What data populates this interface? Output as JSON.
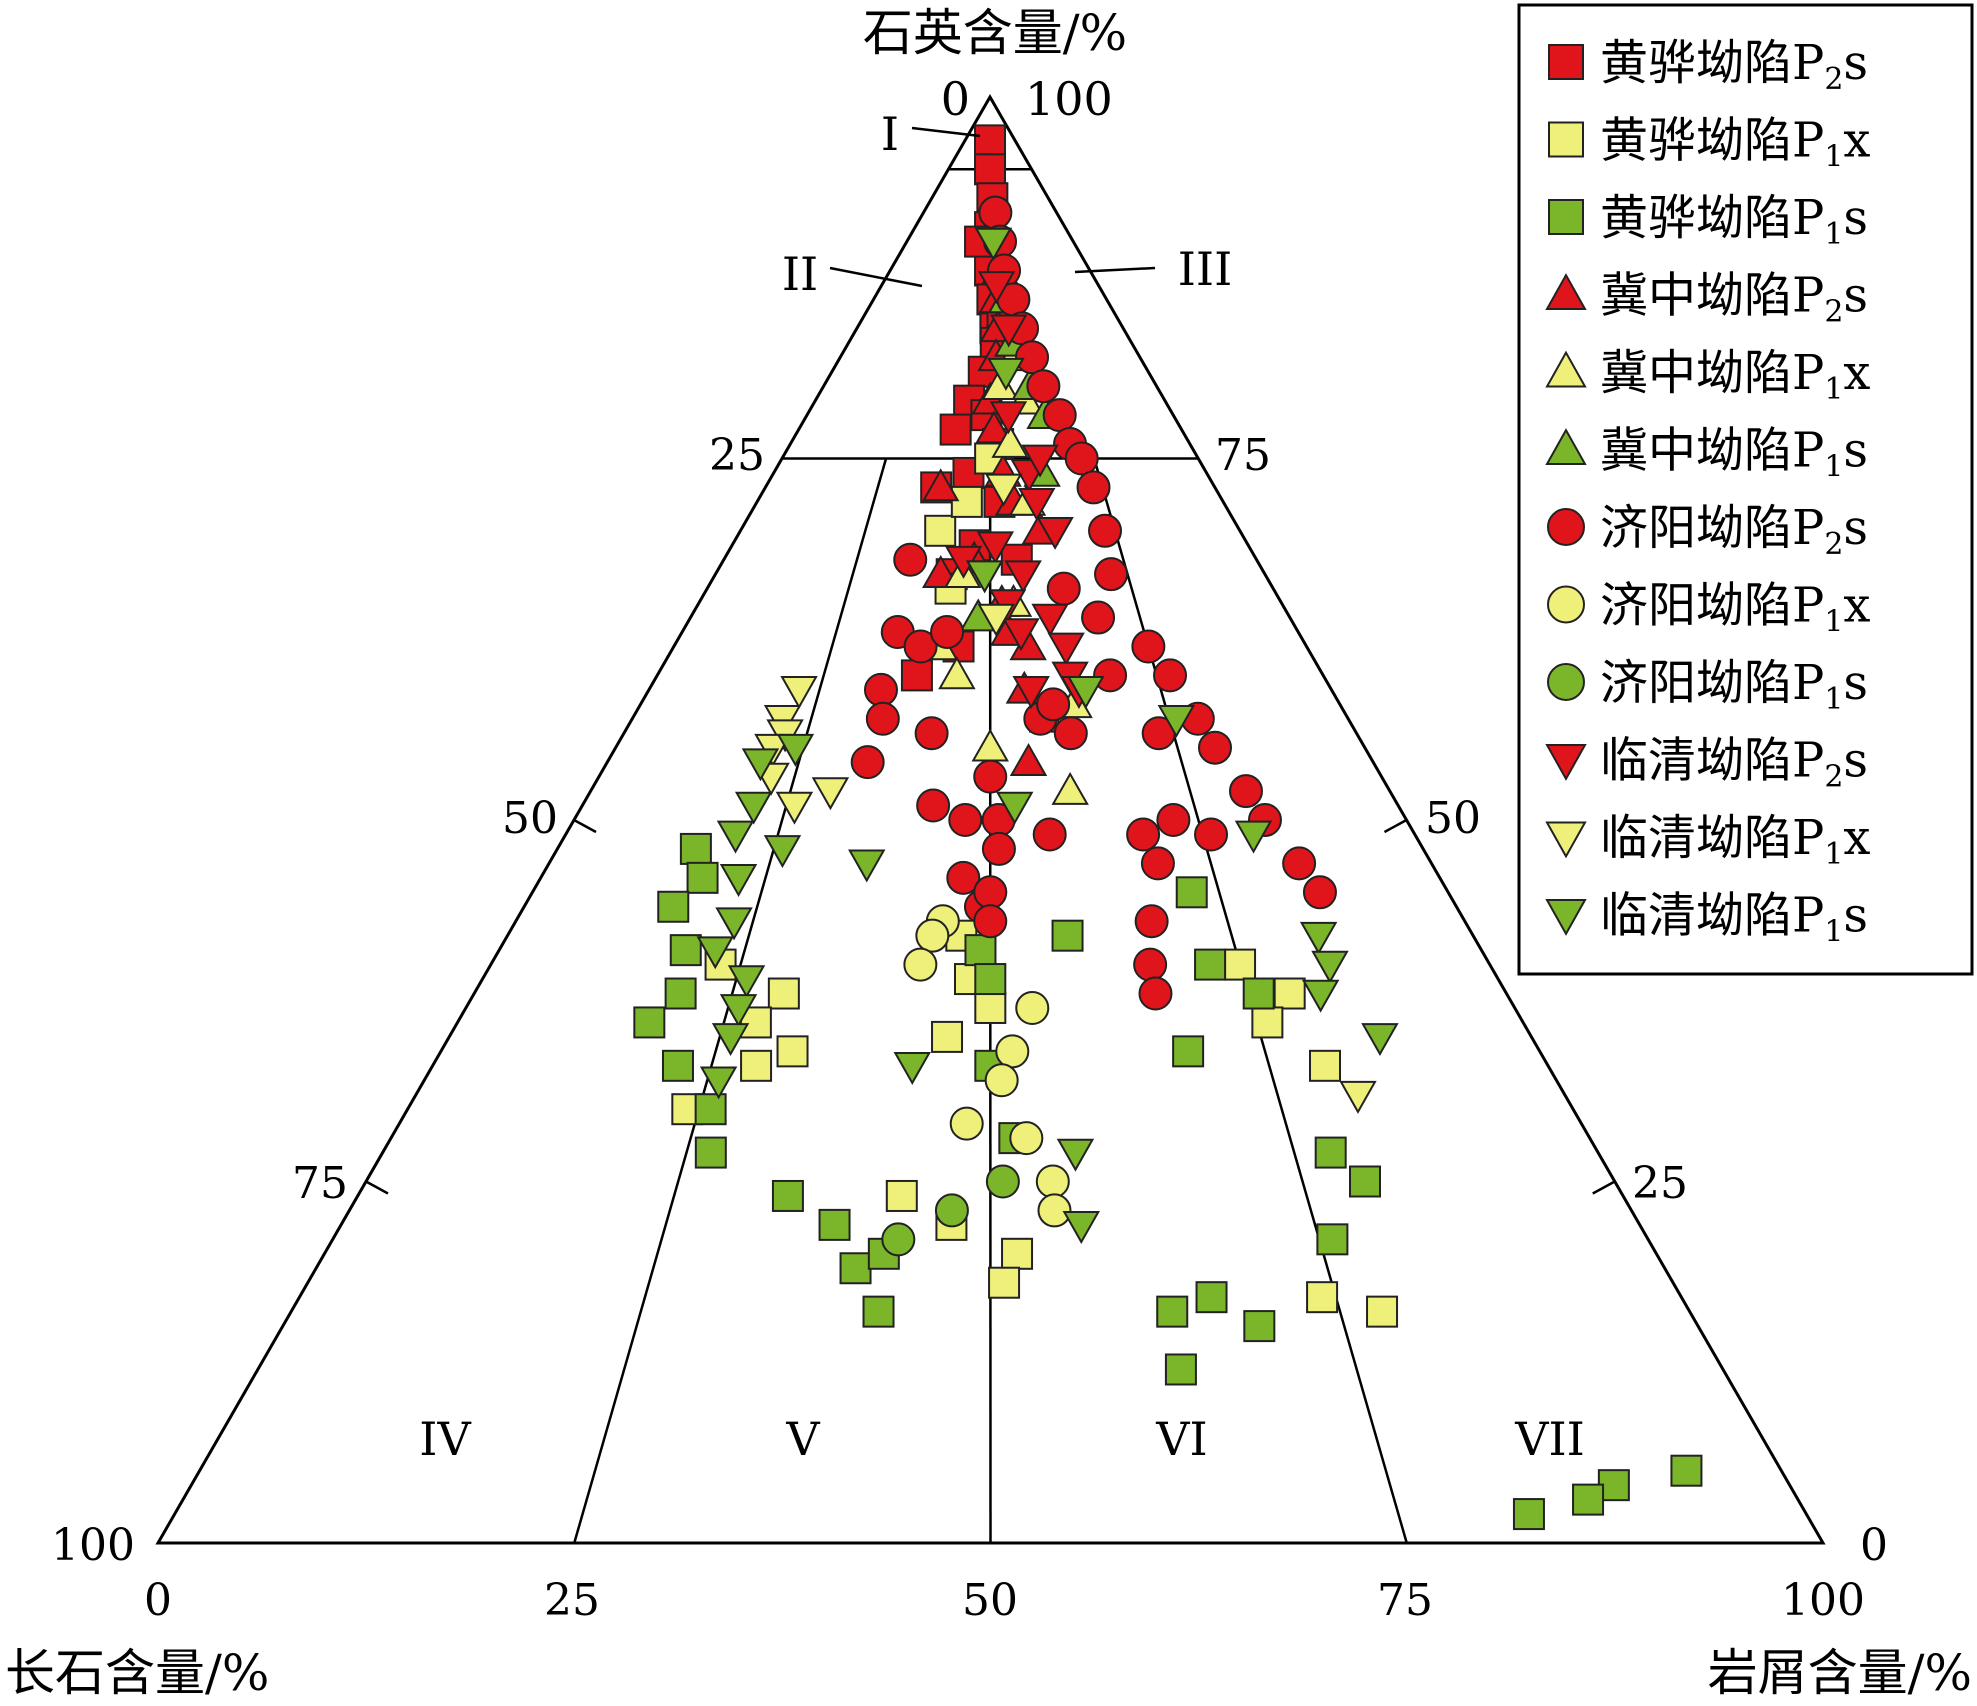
{
  "chart_data": {
    "type": "scatter",
    "subtype": "ternary",
    "axes": {
      "top": {
        "label": "石英含量/%"
      },
      "left": {
        "label": "长石含量/%"
      },
      "right": {
        "label": "岩屑含量/%"
      }
    },
    "top_apex_labels": [
      "0",
      "100"
    ],
    "bottom_ticks": [
      "0",
      "25",
      "50",
      "75",
      "100"
    ],
    "left_ticks": [
      "100",
      "75",
      "50",
      "25"
    ],
    "right_ticks": [
      "0",
      "25",
      "50",
      "75"
    ],
    "left_edge_tick_labels": [
      {
        "text": "50",
        "fraction": 0.5
      },
      {
        "text": "75",
        "fraction": 0.75
      }
    ],
    "right_edge_tick_labels": [
      {
        "text": "50",
        "fraction": 0.5
      },
      {
        "text": "25",
        "fraction": 0.75
      }
    ],
    "field_boundaries": {
      "q_lines": [
        0.95,
        0.75
      ],
      "ratio_lines": [
        0.25,
        0.5,
        0.75
      ]
    },
    "region_labels": [
      "I",
      "II",
      "III",
      "IV",
      "V",
      "VI",
      "VII"
    ],
    "legend_placement": "top-right",
    "grid": false,
    "colors": {
      "red": "#e0141b",
      "yellow": "#eef07a",
      "green": "#7bb52a",
      "edge": "#222222"
    },
    "series": [
      {
        "label_main": "黄骅坳陷",
        "label_sub": "P",
        "label_index": "2",
        "label_suffix": "s",
        "marker": "square",
        "color": "red",
        "points": [
          [
            0.97,
            0.5
          ],
          [
            0.95,
            0.5
          ],
          [
            0.93,
            0.52
          ],
          [
            0.91,
            0.5
          ],
          [
            0.88,
            0.5
          ],
          [
            0.86,
            0.51
          ],
          [
            0.84,
            0.52
          ],
          [
            0.9,
            0.44
          ],
          [
            0.85,
            0.55
          ],
          [
            0.83,
            0.52
          ],
          [
            0.81,
            0.48
          ],
          [
            0.79,
            0.44
          ],
          [
            0.77,
            0.41
          ],
          [
            0.78,
            0.49
          ],
          [
            0.76,
            0.52
          ],
          [
            0.74,
            0.45
          ],
          [
            0.72,
            0.52
          ],
          [
            0.73,
            0.38
          ],
          [
            0.69,
            0.47
          ],
          [
            0.67,
            0.43
          ],
          [
            0.62,
            0.45
          ],
          [
            0.6,
            0.39
          ],
          [
            0.68,
            0.55
          ]
        ]
      },
      {
        "label_main": "黄骅坳陷",
        "label_sub": "P",
        "label_index": "1",
        "label_suffix": "x",
        "marker": "square",
        "color": "yellow",
        "points": [
          [
            0.4,
            0.23
          ],
          [
            0.38,
            0.3
          ],
          [
            0.36,
            0.28
          ],
          [
            0.34,
            0.32
          ],
          [
            0.33,
            0.29
          ],
          [
            0.42,
            0.47
          ],
          [
            0.39,
            0.48
          ],
          [
            0.37,
            0.5
          ],
          [
            0.35,
            0.46
          ],
          [
            0.4,
            0.75
          ],
          [
            0.38,
            0.79
          ],
          [
            0.36,
            0.76
          ],
          [
            0.33,
            0.8
          ],
          [
            0.22,
            0.47
          ],
          [
            0.2,
            0.52
          ],
          [
            0.18,
            0.51
          ],
          [
            0.16,
            0.78
          ],
          [
            0.17,
            0.74
          ],
          [
            0.7,
            0.4
          ],
          [
            0.72,
            0.45
          ],
          [
            0.66,
            0.43
          ],
          [
            0.24,
            0.43
          ],
          [
            0.3,
            0.24
          ],
          [
            0.75,
            0.5
          ]
        ]
      },
      {
        "label_main": "黄骅坳陷",
        "label_sub": "P",
        "label_index": "1",
        "label_suffix": "s",
        "marker": "square",
        "color": "green",
        "points": [
          [
            0.48,
            0.16
          ],
          [
            0.46,
            0.18
          ],
          [
            0.44,
            0.16
          ],
          [
            0.41,
            0.19
          ],
          [
            0.38,
            0.2
          ],
          [
            0.36,
            0.18
          ],
          [
            0.33,
            0.22
          ],
          [
            0.3,
            0.26
          ],
          [
            0.27,
            0.27
          ],
          [
            0.24,
            0.34
          ],
          [
            0.22,
            0.38
          ],
          [
            0.19,
            0.4
          ],
          [
            0.16,
            0.42
          ],
          [
            0.2,
            0.42
          ],
          [
            0.41,
            0.49
          ],
          [
            0.39,
            0.5
          ],
          [
            0.33,
            0.5
          ],
          [
            0.28,
            0.52
          ],
          [
            0.25,
            0.8
          ],
          [
            0.21,
            0.76
          ],
          [
            0.17,
            0.66
          ],
          [
            0.16,
            0.63
          ],
          [
            0.15,
            0.69
          ],
          [
            0.12,
            0.63
          ],
          [
            0.45,
            0.72
          ],
          [
            0.4,
            0.72
          ],
          [
            0.34,
            0.68
          ],
          [
            0.27,
            0.78
          ],
          [
            0.05,
            0.94
          ],
          [
            0.04,
            0.89
          ],
          [
            0.03,
            0.87
          ],
          [
            0.02,
            0.83
          ],
          [
            0.38,
            0.76
          ],
          [
            0.42,
            0.58
          ]
        ]
      },
      {
        "label_main": "冀中坳陷",
        "label_sub": "P",
        "label_index": "2",
        "label_suffix": "s",
        "marker": "triangle-up",
        "color": "red",
        "points": [
          [
            0.84,
            0.53
          ],
          [
            0.82,
            0.52
          ],
          [
            0.79,
            0.5
          ],
          [
            0.77,
            0.51
          ],
          [
            0.74,
            0.53
          ],
          [
            0.72,
            0.55
          ],
          [
            0.7,
            0.6
          ],
          [
            0.68,
            0.47
          ],
          [
            0.65,
            0.52
          ],
          [
            0.63,
            0.53
          ],
          [
            0.62,
            0.56
          ],
          [
            0.59,
            0.55
          ],
          [
            0.57,
            0.58
          ],
          [
            0.54,
            0.55
          ],
          [
            0.73,
            0.39
          ],
          [
            0.67,
            0.41
          ],
          [
            0.86,
            0.53
          ]
        ]
      },
      {
        "label_main": "冀中坳陷",
        "label_sub": "P",
        "label_index": "1",
        "label_suffix": "x",
        "marker": "triangle-up",
        "color": "yellow",
        "points": [
          [
            0.82,
            0.58
          ],
          [
            0.79,
            0.6
          ],
          [
            0.76,
            0.55
          ],
          [
            0.72,
            0.58
          ],
          [
            0.65,
            0.54
          ],
          [
            0.6,
            0.45
          ],
          [
            0.55,
            0.5
          ],
          [
            0.62,
            0.42
          ],
          [
            0.67,
            0.45
          ],
          [
            0.58,
            0.62
          ],
          [
            0.52,
            0.6
          ],
          [
            0.8,
            0.53
          ]
        ]
      },
      {
        "label_main": "冀中坳陷",
        "label_sub": "P",
        "label_index": "1",
        "label_suffix": "s",
        "marker": "triangle-up",
        "color": "green",
        "points": [
          [
            0.78,
            0.65
          ],
          [
            0.83,
            0.58
          ],
          [
            0.86,
            0.57
          ],
          [
            0.64,
            0.48
          ],
          [
            0.88,
            0.55
          ],
          [
            0.8,
            0.62
          ],
          [
            0.74,
            0.62
          ]
        ]
      },
      {
        "label_main": "济阳坳陷",
        "label_sub": "P",
        "label_index": "2",
        "label_suffix": "s",
        "marker": "circle",
        "color": "red",
        "points": [
          [
            0.92,
            0.54
          ],
          [
            0.9,
            0.56
          ],
          [
            0.88,
            0.57
          ],
          [
            0.86,
            0.6
          ],
          [
            0.84,
            0.62
          ],
          [
            0.82,
            0.64
          ],
          [
            0.8,
            0.66
          ],
          [
            0.78,
            0.69
          ],
          [
            0.76,
            0.7
          ],
          [
            0.75,
            0.72
          ],
          [
            0.73,
            0.73
          ],
          [
            0.7,
            0.73
          ],
          [
            0.67,
            0.72
          ],
          [
            0.62,
            0.75
          ],
          [
            0.6,
            0.77
          ],
          [
            0.57,
            0.79
          ],
          [
            0.55,
            0.8
          ],
          [
            0.52,
            0.82
          ],
          [
            0.5,
            0.83
          ],
          [
            0.47,
            0.85
          ],
          [
            0.45,
            0.86
          ],
          [
            0.66,
            0.63
          ],
          [
            0.64,
            0.68
          ],
          [
            0.6,
            0.68
          ],
          [
            0.56,
            0.73
          ],
          [
            0.5,
            0.72
          ],
          [
            0.49,
            0.76
          ],
          [
            0.68,
            0.35
          ],
          [
            0.63,
            0.35
          ],
          [
            0.59,
            0.34
          ],
          [
            0.57,
            0.35
          ],
          [
            0.54,
            0.34
          ],
          [
            0.62,
            0.39
          ],
          [
            0.56,
            0.42
          ],
          [
            0.51,
            0.43
          ],
          [
            0.5,
            0.47
          ],
          [
            0.46,
            0.47
          ],
          [
            0.44,
            0.49
          ],
          [
            0.53,
            0.5
          ],
          [
            0.5,
            0.51
          ],
          [
            0.48,
            0.51
          ],
          [
            0.45,
            0.5
          ],
          [
            0.43,
            0.5
          ],
          [
            0.57,
            0.57
          ],
          [
            0.56,
            0.61
          ],
          [
            0.49,
            0.68
          ],
          [
            0.47,
            0.69
          ],
          [
            0.43,
            0.67
          ],
          [
            0.4,
            0.66
          ],
          [
            0.38,
            0.66
          ],
          [
            0.63,
            0.43
          ],
          [
            0.58,
            0.59
          ],
          [
            0.49,
            0.57
          ]
        ]
      },
      {
        "label_main": "济阳坳陷",
        "label_sub": "P",
        "label_index": "1",
        "label_suffix": "x",
        "marker": "circle",
        "color": "yellow",
        "points": [
          [
            0.43,
            0.45
          ],
          [
            0.42,
            0.44
          ],
          [
            0.4,
            0.43
          ],
          [
            0.37,
            0.54
          ],
          [
            0.34,
            0.52
          ],
          [
            0.32,
            0.51
          ],
          [
            0.29,
            0.48
          ],
          [
            0.28,
            0.53
          ],
          [
            0.25,
            0.55
          ],
          [
            0.23,
            0.55
          ]
        ]
      },
      {
        "label_main": "济阳坳陷",
        "label_sub": "P",
        "label_index": "1",
        "label_suffix": "s",
        "marker": "circle",
        "color": "green",
        "points": [
          [
            0.25,
            0.51
          ],
          [
            0.23,
            0.47
          ],
          [
            0.21,
            0.43
          ]
        ]
      },
      {
        "label_main": "临清坳陷",
        "label_sub": "P",
        "label_index": "2",
        "label_suffix": "s",
        "marker": "triangle-down",
        "color": "red",
        "points": [
          [
            0.9,
            0.52
          ],
          [
            0.87,
            0.53
          ],
          [
            0.84,
            0.57
          ],
          [
            0.78,
            0.55
          ],
          [
            0.74,
            0.59
          ],
          [
            0.7,
            0.63
          ],
          [
            0.69,
            0.51
          ],
          [
            0.68,
            0.45
          ],
          [
            0.67,
            0.49
          ],
          [
            0.65,
            0.53
          ],
          [
            0.64,
            0.6
          ],
          [
            0.62,
            0.62
          ],
          [
            0.6,
            0.62
          ],
          [
            0.59,
            0.63
          ],
          [
            0.59,
            0.56
          ],
          [
            0.63,
            0.55
          ],
          [
            0.67,
            0.56
          ],
          [
            0.72,
            0.6
          ],
          [
            0.75,
            0.62
          ]
        ]
      },
      {
        "label_main": "临清坳陷",
        "label_sub": "P",
        "label_index": "1",
        "label_suffix": "x",
        "marker": "triangle-down",
        "color": "yellow",
        "points": [
          [
            0.59,
            0.22
          ],
          [
            0.57,
            0.21
          ],
          [
            0.56,
            0.22
          ],
          [
            0.55,
            0.21
          ],
          [
            0.53,
            0.22
          ],
          [
            0.51,
            0.26
          ],
          [
            0.52,
            0.3
          ],
          [
            0.31,
            0.82
          ],
          [
            0.64,
            0.51
          ],
          [
            0.73,
            0.53
          ]
        ]
      },
      {
        "label_main": "临清坳陷",
        "label_sub": "P",
        "label_index": "1",
        "label_suffix": "s",
        "marker": "triangle-down",
        "color": "green",
        "points": [
          [
            0.54,
            0.2
          ],
          [
            0.51,
            0.21
          ],
          [
            0.49,
            0.2
          ],
          [
            0.48,
            0.26
          ],
          [
            0.46,
            0.22
          ],
          [
            0.43,
            0.23
          ],
          [
            0.41,
            0.22
          ],
          [
            0.39,
            0.26
          ],
          [
            0.37,
            0.26
          ],
          [
            0.35,
            0.26
          ],
          [
            0.32,
            0.26
          ],
          [
            0.47,
            0.36
          ],
          [
            0.55,
            0.24
          ],
          [
            0.67,
            0.49
          ],
          [
            0.57,
            0.76
          ],
          [
            0.49,
            0.81
          ],
          [
            0.42,
            0.84
          ],
          [
            0.4,
            0.84
          ],
          [
            0.38,
            0.82
          ],
          [
            0.35,
            0.86
          ],
          [
            0.33,
            0.43
          ],
          [
            0.27,
            0.57
          ],
          [
            0.22,
            0.57
          ],
          [
            0.9,
            0.52
          ],
          [
            0.81,
            0.55
          ],
          [
            0.51,
            0.53
          ],
          [
            0.59,
            0.64
          ]
        ]
      }
    ]
  }
}
